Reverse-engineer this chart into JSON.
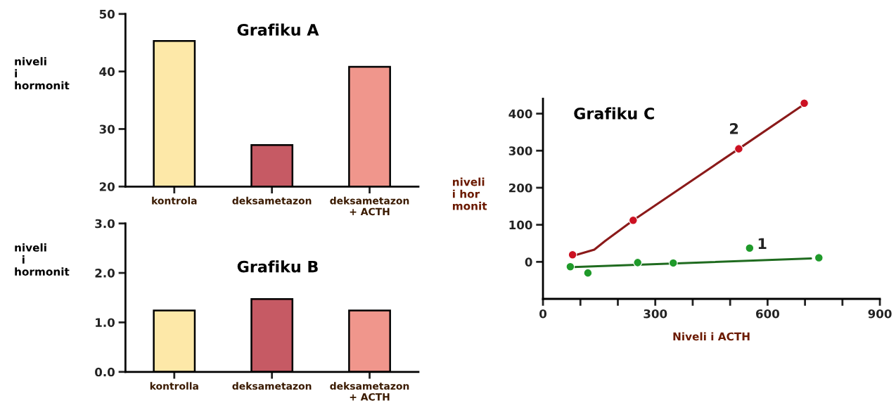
{
  "chart_data": [
    {
      "type": "bar",
      "title": "Grafiku A",
      "ylabel": "niveli\ni\nhormonit",
      "categories": [
        "kontrola",
        "deksametazon",
        "deksametazon\n+ ACTH"
      ],
      "values": [
        45.3,
        27.2,
        40.8
      ],
      "colors": [
        "#fde8a8",
        "#c65a64",
        "#f0968c"
      ],
      "ylim": [
        20,
        50
      ],
      "yticks": [
        20,
        30,
        40,
        50
      ],
      "grid": false,
      "legend": false
    },
    {
      "type": "bar",
      "title": "Grafiku B",
      "ylabel": "niveli\n  i\nhormonit",
      "categories": [
        "kontrolla",
        "deksametazon",
        "deksametazon\n+ ACTH"
      ],
      "values": [
        1.24,
        1.47,
        1.24
      ],
      "colors": [
        "#fde8a8",
        "#c65a64",
        "#f0968c"
      ],
      "ylim": [
        0,
        3
      ],
      "yticks": [
        {
          "value": 0,
          "label": "0.0"
        },
        {
          "value": 1,
          "label": "1.0"
        },
        {
          "value": 2,
          "label": "2.0"
        },
        {
          "value": 3,
          "label": "3.0"
        }
      ],
      "grid": false,
      "legend": false
    },
    {
      "type": "scatter",
      "title": "Grafiku C",
      "xlabel": "Niveli i ACTH",
      "ylabel": "niveli\ni hor\nmonit",
      "xlim": [
        0,
        900
      ],
      "ylim": [
        -100,
        440
      ],
      "xticks": [
        0,
        {
          "value": 100,
          "label": null
        },
        {
          "value": 200,
          "label": null
        },
        300,
        {
          "value": 400,
          "label": null
        },
        {
          "value": 500,
          "label": null
        },
        600,
        {
          "value": 700,
          "label": null
        },
        {
          "value": 800,
          "label": null
        },
        900
      ],
      "yticks": [
        0,
        100,
        200,
        300,
        400
      ],
      "grid": false,
      "legend": false,
      "marker": "circle",
      "series": [
        {
          "type": "line",
          "name": "2",
          "marker": "none",
          "color": "#8b1a1a",
          "x": [
            87,
            137,
            167,
            241,
            523,
            693
          ],
          "values": [
            18,
            33,
            57,
            112,
            305,
            422
          ]
        },
        {
          "type": "scatter",
          "color": "#cc1122",
          "x": [
            79,
            241,
            523,
            698
          ],
          "values": [
            19,
            112,
            305,
            428
          ]
        },
        {
          "type": "line",
          "name": "1",
          "marker": "none",
          "color": "#1f6b1f",
          "x": [
            81,
            716
          ],
          "values": [
            -14,
            9
          ]
        },
        {
          "type": "scatter",
          "color": "#1f9a2a",
          "x": [
            73,
            120,
            253,
            348,
            552,
            737
          ],
          "values": [
            -13,
            -30,
            -2,
            -3,
            37,
            11
          ]
        }
      ]
    }
  ]
}
